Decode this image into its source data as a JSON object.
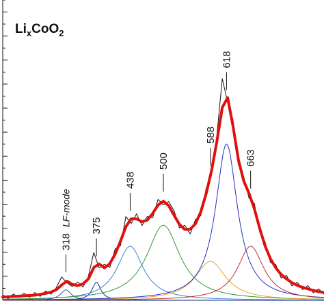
{
  "chart_data": {
    "type": "spectrum",
    "title": [
      "Li",
      "x",
      "CoO",
      "2"
    ],
    "note": "LF-mode",
    "annotations": [
      318,
      375,
      438,
      500,
      588,
      618,
      663
    ],
    "xlim": [
      200,
      800
    ],
    "ylim": [
      0,
      100
    ],
    "yticks": [
      0,
      4,
      8,
      12,
      16,
      20,
      24,
      28,
      32,
      36,
      40,
      44,
      48,
      52,
      56,
      60,
      64,
      68,
      72,
      76,
      80,
      84,
      88,
      92,
      96,
      100
    ],
    "x": [
      200,
      210,
      220,
      230,
      240,
      250,
      260,
      270,
      280,
      290,
      300,
      310,
      320,
      330,
      340,
      350,
      360,
      370,
      380,
      390,
      400,
      410,
      420,
      430,
      440,
      450,
      460,
      470,
      480,
      490,
      500,
      510,
      520,
      530,
      540,
      550,
      560,
      570,
      580,
      590,
      600,
      610,
      620,
      630,
      640,
      650,
      660,
      670,
      680,
      690,
      700,
      710,
      720,
      730,
      740,
      750,
      760,
      770,
      780,
      790,
      800
    ],
    "series": [
      {
        "name": "measured",
        "color": "#111111",
        "values": [
          1.8,
          0.6,
          2.1,
          0.9,
          2.4,
          1.0,
          2.6,
          1.3,
          3.1,
          2.0,
          4.2,
          7.8,
          5.8,
          4.6,
          6.1,
          4.4,
          8.0,
          15.9,
          10.8,
          12.0,
          11.0,
          17.1,
          18.2,
          27.9,
          25.6,
          28.8,
          24.9,
          27.9,
          27.4,
          33.6,
          31.8,
          32.9,
          29.8,
          24.1,
          25.0,
          22.1,
          26.9,
          28.2,
          37.4,
          41.5,
          55.0,
          73.8,
          65.9,
          60.2,
          45.1,
          41.3,
          34.0,
          32.2,
          22.6,
          19.5,
          12.6,
          11.9,
          7.4,
          8.3,
          4.8,
          6.0,
          3.6,
          4.9,
          2.5,
          3.8,
          2.0
        ]
      },
      {
        "name": "fit",
        "color": "#e01010",
        "values": [
          1.1,
          1.2,
          1.3,
          1.4,
          1.5,
          1.6,
          1.7,
          2.0,
          2.3,
          2.7,
          3.5,
          5.1,
          6.4,
          5.3,
          4.9,
          5.5,
          7.1,
          10.9,
          12.1,
          10.8,
          12.2,
          15.4,
          19.7,
          24.5,
          27.2,
          27.1,
          26.2,
          26.7,
          28.9,
          31.7,
          33.0,
          31.5,
          28.3,
          25.3,
          23.6,
          23.7,
          25.5,
          29.5,
          35.6,
          43.2,
          52.9,
          64.2,
          67.5,
          58.1,
          46.9,
          39.8,
          35.6,
          30.4,
          23.9,
          18.1,
          13.8,
          10.8,
          8.6,
          7.1,
          5.9,
          5.0,
          4.3,
          3.8,
          3.3,
          2.9,
          2.6
        ]
      }
    ],
    "components": [
      {
        "center": 318,
        "height": 3.5,
        "width": 12,
        "color": "#3050a0"
      },
      {
        "center": 375,
        "height": 6,
        "width": 10,
        "color": "#102f80"
      },
      {
        "center": 438,
        "height": 18,
        "width": 30,
        "color": "#3a7fd5"
      },
      {
        "center": 500,
        "height": 25,
        "width": 38,
        "color": "#2a9a3a"
      },
      {
        "center": 588,
        "height": 13,
        "width": 35,
        "color": "#f0a030"
      },
      {
        "center": 618,
        "height": 52,
        "width": 25,
        "color": "#2030c0"
      },
      {
        "center": 663,
        "height": 18,
        "width": 30,
        "color": "#c03030"
      }
    ]
  }
}
